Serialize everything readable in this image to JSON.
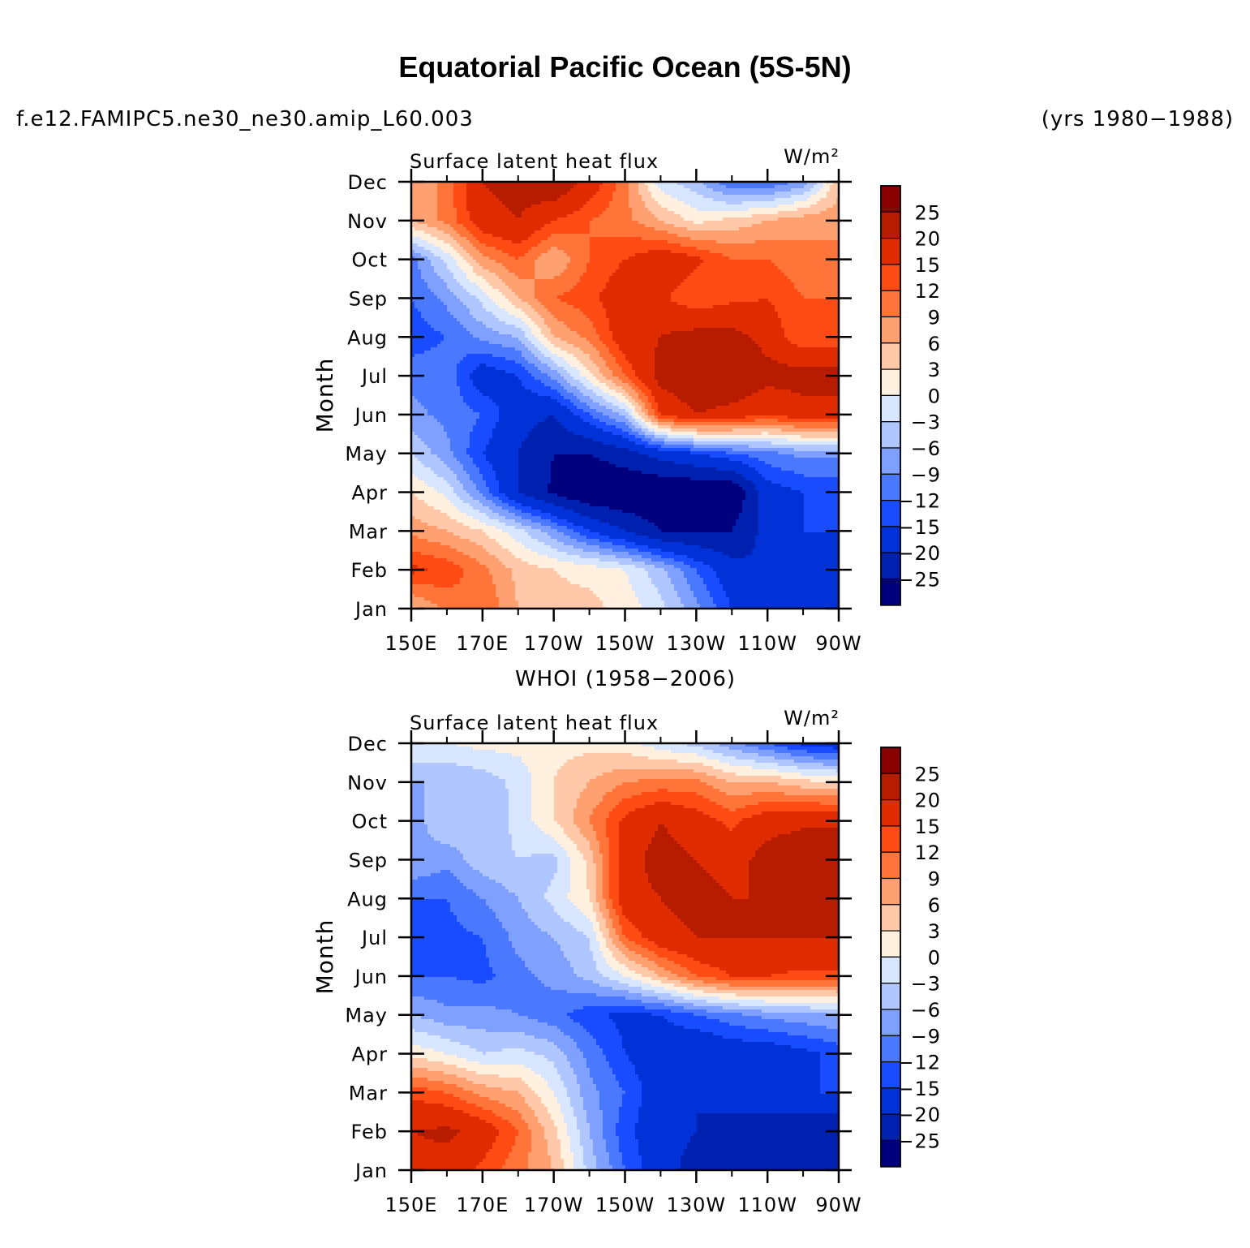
{
  "page": {
    "title": "Equatorial Pacific Ocean (5S-5N)",
    "left_string": "f.e12.FAMIPC5.ne30_ne30.amip_L60.003",
    "right_string": "(yrs 1980−1988)",
    "middle_title": "WHOI (1958−2006)"
  },
  "chart_data": [
    {
      "type": "heatmap",
      "panel": "model",
      "left_title": "Surface latent heat flux",
      "units": "W/m²",
      "ylabel": "Month",
      "x_ticks": [
        "150E",
        "170E",
        "170W",
        "150W",
        "130W",
        "110W",
        "90W"
      ],
      "y_ticks": [
        "Jan",
        "Feb",
        "Mar",
        "Apr",
        "May",
        "Jun",
        "Jul",
        "Aug",
        "Sep",
        "Oct",
        "Nov",
        "Dec"
      ],
      "xlim_lon_east": [
        150,
        270
      ],
      "colorbar_levels": [
        "25",
        "20",
        "15",
        "12",
        "9",
        "6",
        "3",
        "0",
        "−3",
        "−6",
        "−9",
        "−12",
        "−15",
        "−20",
        "−25"
      ],
      "grid_lon_east": [
        150,
        160,
        170,
        180,
        190,
        200,
        210,
        220,
        230,
        240,
        250,
        260,
        270
      ],
      "values": [
        [
          5,
          10,
          12,
          6,
          4,
          4,
          2,
          -2,
          -8,
          -15,
          -18,
          -20,
          -20
        ],
        [
          16,
          14,
          10,
          5,
          3,
          2,
          0,
          -5,
          -12,
          -18,
          -20,
          -18,
          -18
        ],
        [
          8,
          6,
          3,
          -2,
          -8,
          -15,
          -20,
          -25,
          -25,
          -25,
          -18,
          -15,
          -15
        ],
        [
          3,
          -1,
          -10,
          -20,
          -26,
          -30,
          -30,
          -30,
          -30,
          -30,
          -17,
          -15,
          -15
        ],
        [
          -3,
          -8,
          -15,
          -20,
          -25,
          -25,
          -22,
          -18,
          -15,
          -12,
          -10,
          -8,
          -8
        ],
        [
          -8,
          -10,
          -12,
          -18,
          -20,
          -12,
          -5,
          15,
          20,
          18,
          15,
          18,
          18
        ],
        [
          -10,
          -10,
          -18,
          -15,
          -8,
          2,
          12,
          22,
          25,
          25,
          22,
          22,
          22
        ],
        [
          -14,
          -12,
          -8,
          -6,
          6,
          10,
          18,
          20,
          22,
          22,
          18,
          12,
          12
        ],
        [
          -12,
          -8,
          -2,
          6,
          12,
          14,
          18,
          16,
          12,
          14,
          15,
          12,
          12
        ],
        [
          -10,
          -2,
          8,
          12,
          6,
          12,
          15,
          18,
          16,
          12,
          12,
          10,
          10
        ],
        [
          6,
          10,
          18,
          20,
          15,
          12,
          10,
          6,
          2,
          4,
          6,
          8,
          8
        ],
        [
          6,
          10,
          20,
          22,
          25,
          18,
          10,
          -2,
          -5,
          -12,
          -12,
          -8,
          5
        ]
      ]
    },
    {
      "type": "heatmap",
      "panel": "WHOI",
      "left_title": "Surface latent heat flux",
      "units": "W/m²",
      "ylabel": "Month",
      "x_ticks": [
        "150E",
        "170E",
        "170W",
        "150W",
        "130W",
        "110W",
        "90W"
      ],
      "y_ticks": [
        "Jan",
        "Feb",
        "Mar",
        "Apr",
        "May",
        "Jun",
        "Jul",
        "Aug",
        "Sep",
        "Oct",
        "Nov",
        "Dec"
      ],
      "xlim_lon_east": [
        150,
        270
      ],
      "colorbar_levels": [
        "25",
        "20",
        "15",
        "12",
        "9",
        "6",
        "3",
        "0",
        "−3",
        "−6",
        "−9",
        "−12",
        "−15",
        "−20",
        "−25"
      ],
      "grid_lon_east": [
        150,
        160,
        170,
        180,
        190,
        200,
        210,
        220,
        230,
        240,
        250,
        260,
        270
      ],
      "values": [
        [
          18,
          18,
          14,
          10,
          6,
          -4,
          -12,
          -18,
          -22,
          -20,
          -22,
          -25,
          -25
        ],
        [
          20,
          21,
          18,
          12,
          4,
          -6,
          -14,
          -18,
          -20,
          -22,
          -22,
          -25,
          -25
        ],
        [
          14,
          12,
          8,
          6,
          0,
          -8,
          -12,
          -18,
          -20,
          -18,
          -18,
          -15,
          -15
        ],
        [
          2,
          0,
          -3,
          -2,
          -4,
          -10,
          -15,
          -18,
          -20,
          -18,
          -18,
          -16,
          -14
        ],
        [
          -6,
          -8,
          -8,
          -9,
          -11,
          -14,
          -16,
          -15,
          -12,
          -10,
          -8,
          -7,
          -6
        ],
        [
          -12,
          -12,
          -13,
          -10,
          -8,
          -5,
          0,
          6,
          12,
          15,
          15,
          14,
          14
        ],
        [
          -15,
          -13,
          -12,
          -8,
          -6,
          -3,
          12,
          18,
          20,
          20,
          20,
          20,
          20
        ],
        [
          -12,
          -12,
          -9,
          -6,
          -2,
          3,
          18,
          20,
          22,
          20,
          20,
          22,
          22
        ],
        [
          -6,
          -8,
          -4,
          -3,
          -4,
          4,
          18,
          22,
          20,
          18,
          22,
          24,
          24
        ],
        [
          -8,
          -3,
          -6,
          -2,
          3,
          9,
          16,
          20,
          17,
          14,
          18,
          19,
          19
        ],
        [
          -6,
          -6,
          -5,
          -2,
          3,
          6,
          9,
          10,
          10,
          6,
          6,
          4,
          3
        ],
        [
          0,
          0,
          1,
          1,
          2,
          2,
          1,
          -2,
          -4,
          -8,
          -12,
          -16,
          -18
        ]
      ]
    }
  ]
}
